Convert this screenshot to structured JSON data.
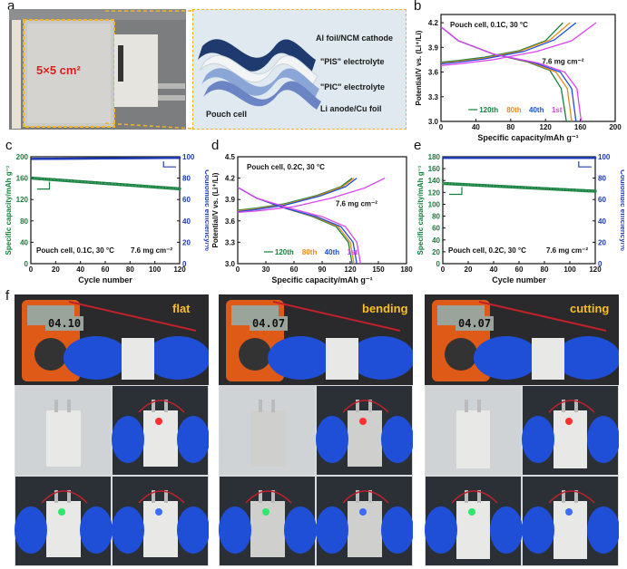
{
  "panel_labels": {
    "a": "a",
    "b": "b",
    "c": "c",
    "d": "d",
    "e": "e",
    "f": "f"
  },
  "panel_a": {
    "area_label": "5×5 cm²",
    "layers": [
      "Al foil/NCM cathode",
      "\"PIS\" electrolyte",
      "\"PIC\" electrolyte",
      "Li anode/Cu foil"
    ],
    "cell_label": "Pouch cell"
  },
  "panel_f": {
    "captions": [
      "flat",
      "bending",
      "cutting"
    ],
    "meter_readings": [
      "04.10",
      "04.07",
      "04.07"
    ]
  },
  "colors": {
    "green": "#15803d",
    "orange": "#ea8a1c",
    "blue": "#1d4ed8",
    "magenta": "#d946ef",
    "ce_blue": "#1f3bb3",
    "yellow_accent": "#f0b429"
  },
  "chart_data": [
    {
      "panel": "b",
      "type": "line",
      "annotation": "Pouch cell, 0.1C, 30 °C",
      "loading": "7.6 mg cm⁻²",
      "xlabel": "Specific capacity/mAh g⁻¹",
      "ylabel": "Potential/V vs. (Li⁺/Li)",
      "xlim": [
        0,
        200
      ],
      "ylim": [
        3.0,
        4.3
      ],
      "xticks": [
        0,
        40,
        80,
        120,
        160,
        200
      ],
      "yticks": [
        3.0,
        3.3,
        3.6,
        3.9,
        4.2
      ],
      "legend": [
        "120th",
        "80th",
        "40th",
        "1st"
      ],
      "series": [
        {
          "name": "120th",
          "color": "#15803d",
          "charge": [
            [
              0,
              3.72
            ],
            [
              20,
              3.74
            ],
            [
              50,
              3.78
            ],
            [
              90,
              3.86
            ],
            [
              120,
              3.98
            ],
            [
              140,
              4.2
            ]
          ],
          "discharge": [
            [
              0,
              4.15
            ],
            [
              20,
              3.98
            ],
            [
              60,
              3.82
            ],
            [
              100,
              3.72
            ],
            [
              125,
              3.62
            ],
            [
              138,
              3.4
            ],
            [
              144,
              3.0
            ]
          ]
        },
        {
          "name": "80th",
          "color": "#ea8a1c",
          "charge": [
            [
              0,
              3.71
            ],
            [
              20,
              3.73
            ],
            [
              50,
              3.77
            ],
            [
              90,
              3.85
            ],
            [
              125,
              3.99
            ],
            [
              148,
              4.2
            ]
          ],
          "discharge": [
            [
              0,
              4.15
            ],
            [
              20,
              3.98
            ],
            [
              60,
              3.82
            ],
            [
              105,
              3.71
            ],
            [
              132,
              3.6
            ],
            [
              145,
              3.4
            ],
            [
              150,
              3.0
            ]
          ]
        },
        {
          "name": "40th",
          "color": "#1d4ed8",
          "charge": [
            [
              0,
              3.7
            ],
            [
              20,
              3.72
            ],
            [
              50,
              3.76
            ],
            [
              95,
              3.85
            ],
            [
              130,
              3.99
            ],
            [
              155,
              4.2
            ]
          ],
          "discharge": [
            [
              0,
              4.15
            ],
            [
              20,
              3.98
            ],
            [
              60,
              3.82
            ],
            [
              108,
              3.71
            ],
            [
              137,
              3.6
            ],
            [
              150,
              3.4
            ],
            [
              155,
              3.0
            ]
          ]
        },
        {
          "name": "1st",
          "color": "#d946ef",
          "charge": [
            [
              0,
              3.68
            ],
            [
              20,
              3.7
            ],
            [
              60,
              3.75
            ],
            [
              110,
              3.85
            ],
            [
              150,
              3.98
            ],
            [
              178,
              4.2
            ]
          ],
          "discharge": [
            [
              0,
              4.15
            ],
            [
              20,
              3.98
            ],
            [
              60,
              3.82
            ],
            [
              112,
              3.71
            ],
            [
              142,
              3.6
            ],
            [
              156,
              3.4
            ],
            [
              161,
              3.0
            ]
          ]
        }
      ]
    },
    {
      "panel": "c",
      "type": "scatter",
      "annotation": "Pouch cell, 0.1C, 30 °C",
      "loading": "7.6 mg cm⁻²",
      "xlabel": "Cycle number",
      "ylabel": "Specific capacity/mAh g⁻¹",
      "ylabel2": "Coulombic efficiency/%",
      "xlim": [
        0,
        120
      ],
      "ylim": [
        0,
        200
      ],
      "ylim2": [
        0,
        100
      ],
      "xticks": [
        0,
        20,
        40,
        60,
        80,
        100,
        120
      ],
      "yticks": [
        0,
        40,
        80,
        120,
        160,
        200
      ],
      "yticks2": [
        0,
        20,
        40,
        60,
        80,
        100
      ],
      "series": [
        {
          "name": "capacity",
          "color": "#15803d",
          "start": 160,
          "end": 140
        },
        {
          "name": "efficiency",
          "color": "#1f3bb3",
          "start": 98,
          "end": 99
        }
      ]
    },
    {
      "panel": "d",
      "type": "line",
      "annotation": "Pouch cell, 0.2C, 30 °C",
      "loading": "7.6 mg cm⁻²",
      "xlabel": "Specific capacity/mAh g⁻¹",
      "ylabel": "Potential/V vs. (Li⁺/Li)",
      "xlim": [
        0,
        180
      ],
      "ylim": [
        3.0,
        4.5
      ],
      "xticks": [
        0,
        30,
        60,
        90,
        120,
        150,
        180
      ],
      "yticks": [
        3.0,
        3.3,
        3.6,
        3.9,
        4.2,
        4.5
      ],
      "legend": [
        "120th",
        "80th",
        "40th",
        "1st"
      ],
      "series": [
        {
          "name": "120th",
          "color": "#15803d",
          "charge": [
            [
              0,
              3.75
            ],
            [
              20,
              3.78
            ],
            [
              50,
              3.84
            ],
            [
              85,
              3.96
            ],
            [
              110,
              4.08
            ],
            [
              122,
              4.2
            ]
          ],
          "discharge": [
            [
              0,
              4.07
            ],
            [
              20,
              3.92
            ],
            [
              50,
              3.78
            ],
            [
              80,
              3.66
            ],
            [
              105,
              3.52
            ],
            [
              118,
              3.3
            ],
            [
              122,
              3.0
            ]
          ]
        },
        {
          "name": "80th",
          "color": "#ea8a1c",
          "charge": [
            [
              0,
              3.74
            ],
            [
              20,
              3.77
            ],
            [
              50,
              3.83
            ],
            [
              85,
              3.95
            ],
            [
              112,
              4.08
            ],
            [
              124,
              4.2
            ]
          ],
          "discharge": [
            [
              0,
              4.07
            ],
            [
              20,
              3.92
            ],
            [
              50,
              3.78
            ],
            [
              82,
              3.66
            ],
            [
              107,
              3.52
            ],
            [
              120,
              3.3
            ],
            [
              124,
              3.0
            ]
          ]
        },
        {
          "name": "40th",
          "color": "#1d4ed8",
          "charge": [
            [
              0,
              3.73
            ],
            [
              20,
              3.76
            ],
            [
              50,
              3.82
            ],
            [
              88,
              3.95
            ],
            [
              115,
              4.08
            ],
            [
              127,
              4.2
            ]
          ],
          "discharge": [
            [
              0,
              4.07
            ],
            [
              20,
              3.92
            ],
            [
              50,
              3.78
            ],
            [
              84,
              3.66
            ],
            [
              110,
              3.52
            ],
            [
              123,
              3.3
            ],
            [
              127,
              3.0
            ]
          ]
        },
        {
          "name": "1st",
          "color": "#d946ef",
          "charge": [
            [
              0,
              3.72
            ],
            [
              20,
              3.74
            ],
            [
              60,
              3.8
            ],
            [
              100,
              3.92
            ],
            [
              135,
              4.06
            ],
            [
              157,
              4.2
            ]
          ],
          "discharge": [
            [
              0,
              4.07
            ],
            [
              20,
              3.92
            ],
            [
              55,
              3.78
            ],
            [
              90,
              3.66
            ],
            [
              115,
              3.52
            ],
            [
              127,
              3.3
            ],
            [
              131,
              3.0
            ]
          ]
        }
      ]
    },
    {
      "panel": "e",
      "type": "scatter",
      "annotation": "Pouch cell, 0.2C, 30 °C",
      "loading": "7.6 mg cm⁻²",
      "xlabel": "Cycle number",
      "ylabel": "Specific capacity/mAh g⁻¹",
      "ylabel2": "Coulombic efficiency/%",
      "xlim": [
        0,
        120
      ],
      "ylim": [
        0,
        180
      ],
      "ylim2": [
        0,
        100
      ],
      "xticks": [
        0,
        20,
        40,
        60,
        80,
        100,
        120
      ],
      "yticks": [
        0,
        20,
        40,
        60,
        80,
        100,
        120,
        140,
        160,
        180
      ],
      "yticks2": [
        0,
        20,
        40,
        60,
        80,
        100
      ],
      "series": [
        {
          "name": "capacity",
          "color": "#15803d",
          "start": 135,
          "end": 122
        },
        {
          "name": "efficiency",
          "color": "#1f3bb3",
          "start": 99,
          "end": 99
        }
      ]
    }
  ]
}
